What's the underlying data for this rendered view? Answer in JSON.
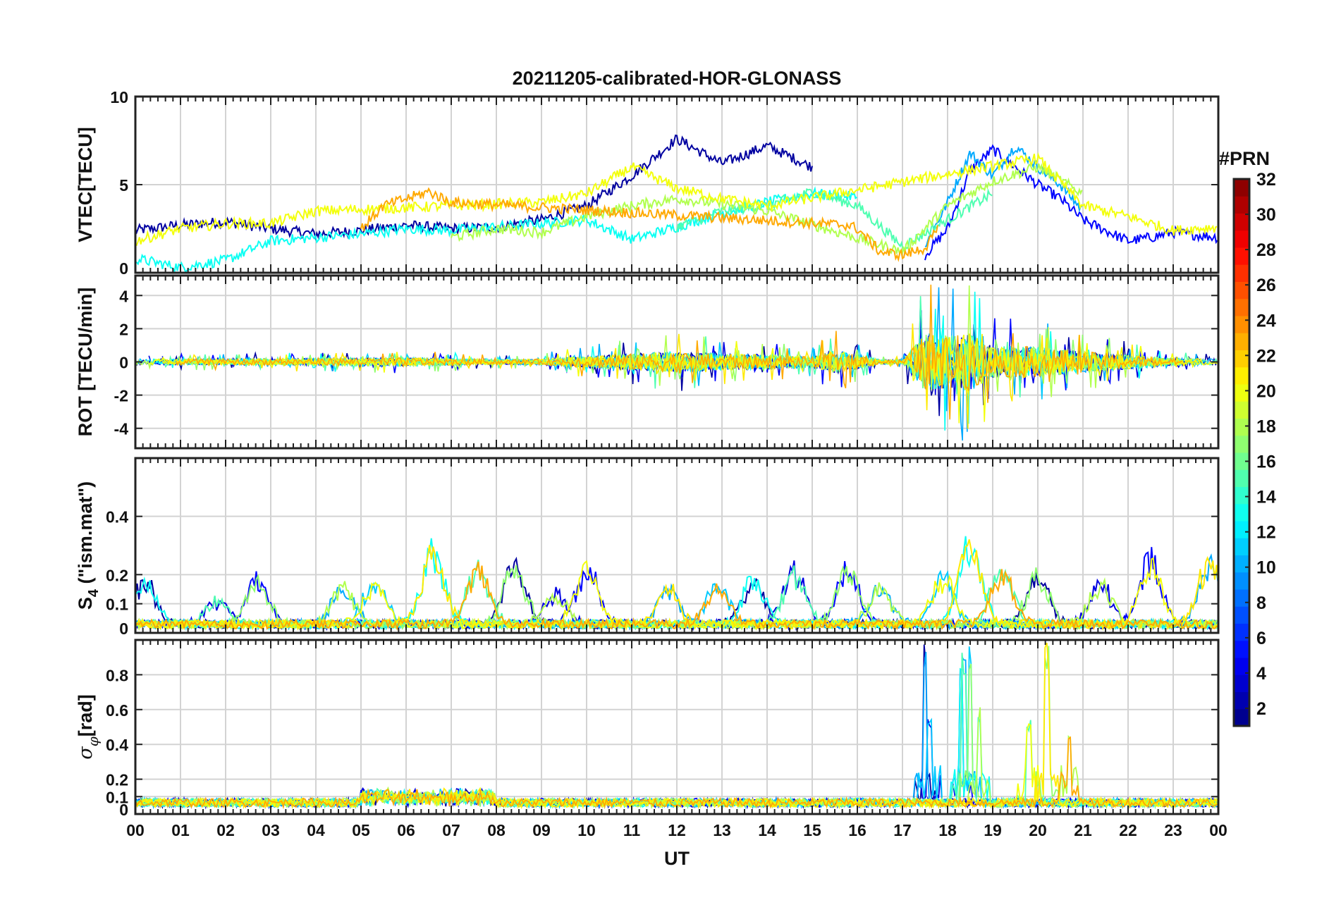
{
  "chart_data": {
    "type": "line",
    "title": "20211205-calibrated-HOR-GLONASS",
    "xlabel": "UT",
    "x_ticks": [
      "00",
      "01",
      "02",
      "03",
      "04",
      "05",
      "06",
      "07",
      "08",
      "09",
      "10",
      "11",
      "12",
      "13",
      "14",
      "15",
      "16",
      "17",
      "18",
      "19",
      "20",
      "21",
      "22",
      "23",
      "00"
    ],
    "xlim": [
      0,
      24
    ],
    "panels": [
      {
        "id": "vtec",
        "ylabel": "VTEC[TECU]",
        "ylim": [
          0,
          10
        ],
        "yticks": [
          0,
          5,
          10
        ],
        "ytick_labels": [
          "0",
          "5",
          "10"
        ],
        "description": "Vertical TEC per GLONASS PRN, mostly 1–5 TECU, elevated to ~5–9 TECU between 10–15 UT and 17.5–21 UT",
        "series": [
          {
            "name": "PRN 2",
            "x": [
              0,
              1,
              2,
              3,
              4,
              5,
              6,
              7,
              8,
              9,
              10,
              11,
              12,
              13,
              14,
              15
            ],
            "values": [
              2.4,
              2.7,
              2.9,
              2.5,
              2.2,
              2.4,
              2.7,
              2.5,
              2.6,
              3.0,
              3.8,
              5.5,
              7.6,
              6.2,
              7.2,
              6.0
            ]
          },
          {
            "name": "PRN 5",
            "x": [
              17.5,
              18,
              18.5,
              19,
              19.5,
              20,
              20.5,
              21,
              21.5,
              22,
              22.5,
              23,
              24
            ],
            "values": [
              1.0,
              2.5,
              5.8,
              7.0,
              6.0,
              5.0,
              4.2,
              3.0,
              2.4,
              1.8,
              2.0,
              2.3,
              2.0
            ]
          },
          {
            "name": "PRN 10",
            "x": [
              17.5,
              18,
              18.5,
              19,
              19.5,
              20,
              20.5,
              21
            ],
            "values": [
              1.5,
              4.0,
              6.8,
              5.5,
              7.2,
              6.0,
              5.0,
              3.5
            ]
          },
          {
            "name": "PRN 13",
            "x": [
              0,
              1,
              2,
              3,
              4,
              5,
              6,
              7,
              8,
              9,
              10,
              11,
              12,
              13,
              14,
              15,
              16
            ],
            "values": [
              0.8,
              0.3,
              0.7,
              1.8,
              2.0,
              2.2,
              2.5,
              2.4,
              2.6,
              2.8,
              3.0,
              1.9,
              2.6,
              3.4,
              4.0,
              4.5,
              4.3
            ]
          },
          {
            "name": "PRN 15",
            "x": [
              12,
              13,
              14,
              15,
              16,
              17,
              18,
              19
            ],
            "values": [
              2.6,
              3.5,
              3.8,
              4.6,
              3.8,
              1.5,
              3.0,
              4.5
            ]
          },
          {
            "name": "PRN 18",
            "x": [
              7,
              8,
              9,
              10,
              11,
              12,
              13,
              14,
              17,
              18,
              19,
              20,
              21
            ],
            "values": [
              2.0,
              2.5,
              2.3,
              3.2,
              3.8,
              4.2,
              3.9,
              3.5,
              1.2,
              3.8,
              5.2,
              6.0,
              4.5
            ]
          },
          {
            "name": "PRN 20",
            "x": [
              0,
              1,
              2,
              3,
              4,
              9,
              10,
              11,
              12,
              13,
              14,
              20,
              21,
              22,
              23,
              24
            ],
            "values": [
              1.8,
              2.5,
              2.8,
              2.8,
              3.5,
              4.0,
              4.5,
              6.0,
              4.8,
              4.2,
              3.8,
              6.5,
              3.8,
              3.2,
              2.4,
              2.6
            ]
          },
          {
            "name": "PRN 23",
            "x": [
              5,
              5.5,
              6,
              6.5,
              7,
              15.8,
              16,
              16.5,
              17,
              17.5,
              17.8
            ],
            "values": [
              2.5,
              3.8,
              4.2,
              4.6,
              4.0,
              2.7,
              2.5,
              1.2,
              1.0,
              1.4,
              2.5
            ]
          }
        ]
      },
      {
        "id": "rot",
        "ylabel": "ROT [TECU/min]",
        "ylim": [
          -5.2,
          5.2
        ],
        "yticks": [
          -4,
          -2,
          0,
          2,
          4
        ],
        "ytick_labels": [
          "-4",
          "-2",
          "0",
          "2",
          "4"
        ],
        "description": "Rate of TEC change, fluctuations around 0 with strong bursts (±4–5 TECU/min) between 17.5 and 19 UT",
        "envelope": {
          "x": [
            0,
            2,
            4,
            6,
            8,
            9,
            10,
            11,
            12,
            13,
            14,
            15,
            15.5,
            16,
            16.5,
            17,
            17.5,
            18,
            18.5,
            19,
            20,
            21,
            22,
            23,
            24
          ],
          "amplitude": [
            0.5,
            0.5,
            0.6,
            0.7,
            0.4,
            0.5,
            1.0,
            1.4,
            1.8,
            1.4,
            1.2,
            0.9,
            2.0,
            1.2,
            0.4,
            0.3,
            5.0,
            4.5,
            5.0,
            2.8,
            2.6,
            1.8,
            1.2,
            0.6,
            0.5
          ]
        }
      },
      {
        "id": "s4",
        "ylabel": "S4 (\"ism.mat\")",
        "ylabel_main": "S",
        "ylabel_sub": "4",
        "ylabel_rest": " (\"ism.mat\")",
        "ylim": [
          0,
          0.6
        ],
        "yticks": [
          0,
          0.1,
          0.2,
          0.4
        ],
        "ytick_labels": [
          "0",
          "0.1",
          "0.2",
          "0.4"
        ],
        "description": "Amplitude scintillation index S4, mostly below 0.1 with peaks near 0.2–0.33",
        "peaks": {
          "x": [
            0.2,
            1.8,
            2.7,
            4.6,
            5.3,
            6.6,
            7.6,
            8.4,
            9.3,
            10,
            11.8,
            12.9,
            13.7,
            14.6,
            15.8,
            16.5,
            17.9,
            18.5,
            19.2,
            20,
            21.4,
            22.5,
            23.8
          ],
          "values": [
            0.17,
            0.1,
            0.18,
            0.15,
            0.17,
            0.29,
            0.22,
            0.23,
            0.12,
            0.23,
            0.14,
            0.16,
            0.18,
            0.21,
            0.23,
            0.14,
            0.19,
            0.33,
            0.22,
            0.2,
            0.16,
            0.26,
            0.25
          ]
        }
      },
      {
        "id": "sigma_phi",
        "ylabel": "σφ[rad]",
        "ylabel_main": "σ",
        "ylabel_sub": "φ",
        "ylabel_rest": "[rad]",
        "ylim": [
          0,
          1.0
        ],
        "yticks": [
          0,
          0.1,
          0.2,
          0.4,
          0.6,
          0.8
        ],
        "ytick_labels": [
          "0",
          "0.1",
          "0.2",
          "0.4",
          "0.6",
          "0.8"
        ],
        "description": "Phase scintillation index, baseline ~0.05, spikes to ~1 rad near 17.5, 18.3, 18.5, 18.7, 20.2 UT",
        "spikes": {
          "x": [
            17.5,
            17.6,
            18.3,
            18.35,
            18.5,
            18.7,
            19.8,
            20.2,
            20.7
          ],
          "values": [
            1.0,
            0.55,
            1.0,
            0.95,
            1.0,
            0.65,
            0.55,
            1.0,
            0.48
          ]
        }
      }
    ],
    "colorbar": {
      "title": "#PRN",
      "range": [
        1,
        32
      ],
      "tick_labels": [
        "2",
        "4",
        "6",
        "8",
        "10",
        "12",
        "14",
        "16",
        "18",
        "20",
        "22",
        "24",
        "26",
        "28",
        "30",
        "32"
      ],
      "colormap": "jet"
    }
  }
}
